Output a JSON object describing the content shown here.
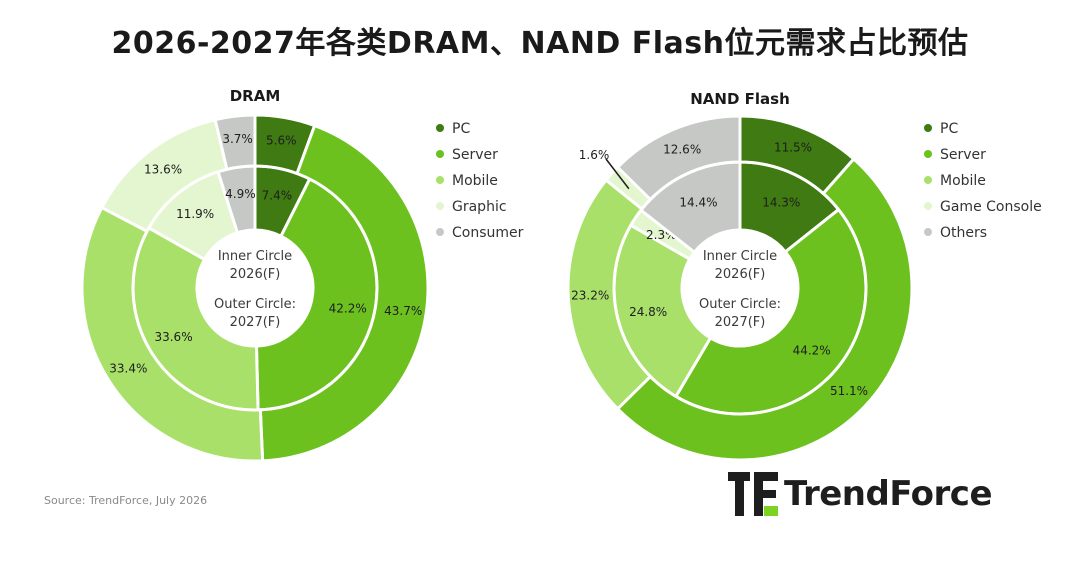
{
  "title": "2026-2027年各类DRAM、NAND Flash位元需求占比预估",
  "source": "Source: TrendForce, July 2026",
  "logo": {
    "text": "TrendForce"
  },
  "center_text": [
    "Inner Circle",
    "2026(F)",
    "Outer Circle:",
    "2027(F)"
  ],
  "colors": {
    "PC": "#3f7a12",
    "Server": "#6cc11f",
    "Mobile": "#a9e06a",
    "Graphic": "#e4f6cf",
    "Consumer": "#c6c8c6",
    "Game Console": "#e4f6cf",
    "Others": "#c6c8c6"
  },
  "chart_data": [
    {
      "type": "pie",
      "title": "DRAM",
      "categories": [
        "PC",
        "Server",
        "Mobile",
        "Graphic",
        "Consumer"
      ],
      "series": [
        {
          "name": "Inner Circle 2026(F)",
          "values": [
            7.4,
            42.2,
            33.6,
            11.9,
            4.9
          ]
        },
        {
          "name": "Outer Circle 2027(F)",
          "values": [
            5.6,
            43.7,
            33.4,
            13.6,
            3.7
          ]
        }
      ],
      "legend": "right"
    },
    {
      "type": "pie",
      "title": "NAND Flash",
      "categories": [
        "PC",
        "Server",
        "Mobile",
        "Game Console",
        "Others"
      ],
      "series": [
        {
          "name": "Inner Circle 2026(F)",
          "values": [
            14.3,
            44.2,
            24.8,
            2.3,
            14.4
          ]
        },
        {
          "name": "Outer Circle 2027(F)",
          "values": [
            11.5,
            51.1,
            23.2,
            1.6,
            12.6
          ]
        }
      ],
      "legend": "right"
    }
  ]
}
